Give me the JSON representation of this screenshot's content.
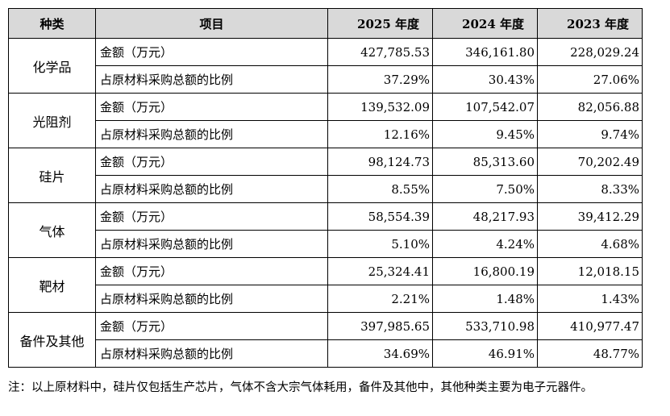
{
  "headers": [
    "种类",
    "项目",
    "2025 年度",
    "2024 年度",
    "2023 年度"
  ],
  "rows": [
    {
      "category": "化学品",
      "amount_label": "金额（万元）",
      "amounts": [
        "427,785.53",
        "346,161.80",
        "228,029.24"
      ],
      "ratio_label": "占原材料采购总额的比例",
      "ratios": [
        "37.29%",
        "30.43%",
        "27.06%"
      ]
    },
    {
      "category": "光阻剂",
      "amount_label": "金额（万元）",
      "amounts": [
        "139,532.09",
        "107,542.07",
        "82,056.88"
      ],
      "ratio_label": "占原材料采购总额的比例",
      "ratios": [
        "12.16%",
        "9.45%",
        "9.74%"
      ]
    },
    {
      "category": "硅片",
      "amount_label": "金额（万元）",
      "amounts": [
        "98,124.73",
        "85,313.60",
        "70,202.49"
      ],
      "ratio_label": "占原材料采购总额的比例",
      "ratios": [
        "8.55%",
        "7.50%",
        "8.33%"
      ]
    },
    {
      "category": "气体",
      "amount_label": "金额（万元）",
      "amounts": [
        "58,554.39",
        "48,217.93",
        "39,412.29"
      ],
      "ratio_label": "占原材料采购总额的比例",
      "ratios": [
        "5.10%",
        "4.24%",
        "4.68%"
      ]
    },
    {
      "category": "靶材",
      "amount_label": "金额（万元）",
      "amounts": [
        "25,324.41",
        "16,800.19",
        "12,018.15"
      ],
      "ratio_label": "占原材料采购总额的比例",
      "ratios": [
        "2.21%",
        "1.48%",
        "1.43%"
      ]
    },
    {
      "category": "备件及其他",
      "amount_label": "金额（万元）",
      "amounts": [
        "397,985.65",
        "533,710.98",
        "410,977.47"
      ],
      "ratio_label": "占原材料采购总额的比例",
      "ratios": [
        "34.69%",
        "46.91%",
        "48.77%"
      ]
    }
  ],
  "note": "注：以上原材料中，硅片仅包括生产芯片，气体不含大宗气体耗用，备件及其他中，其他种类主要为电子元器件。"
}
